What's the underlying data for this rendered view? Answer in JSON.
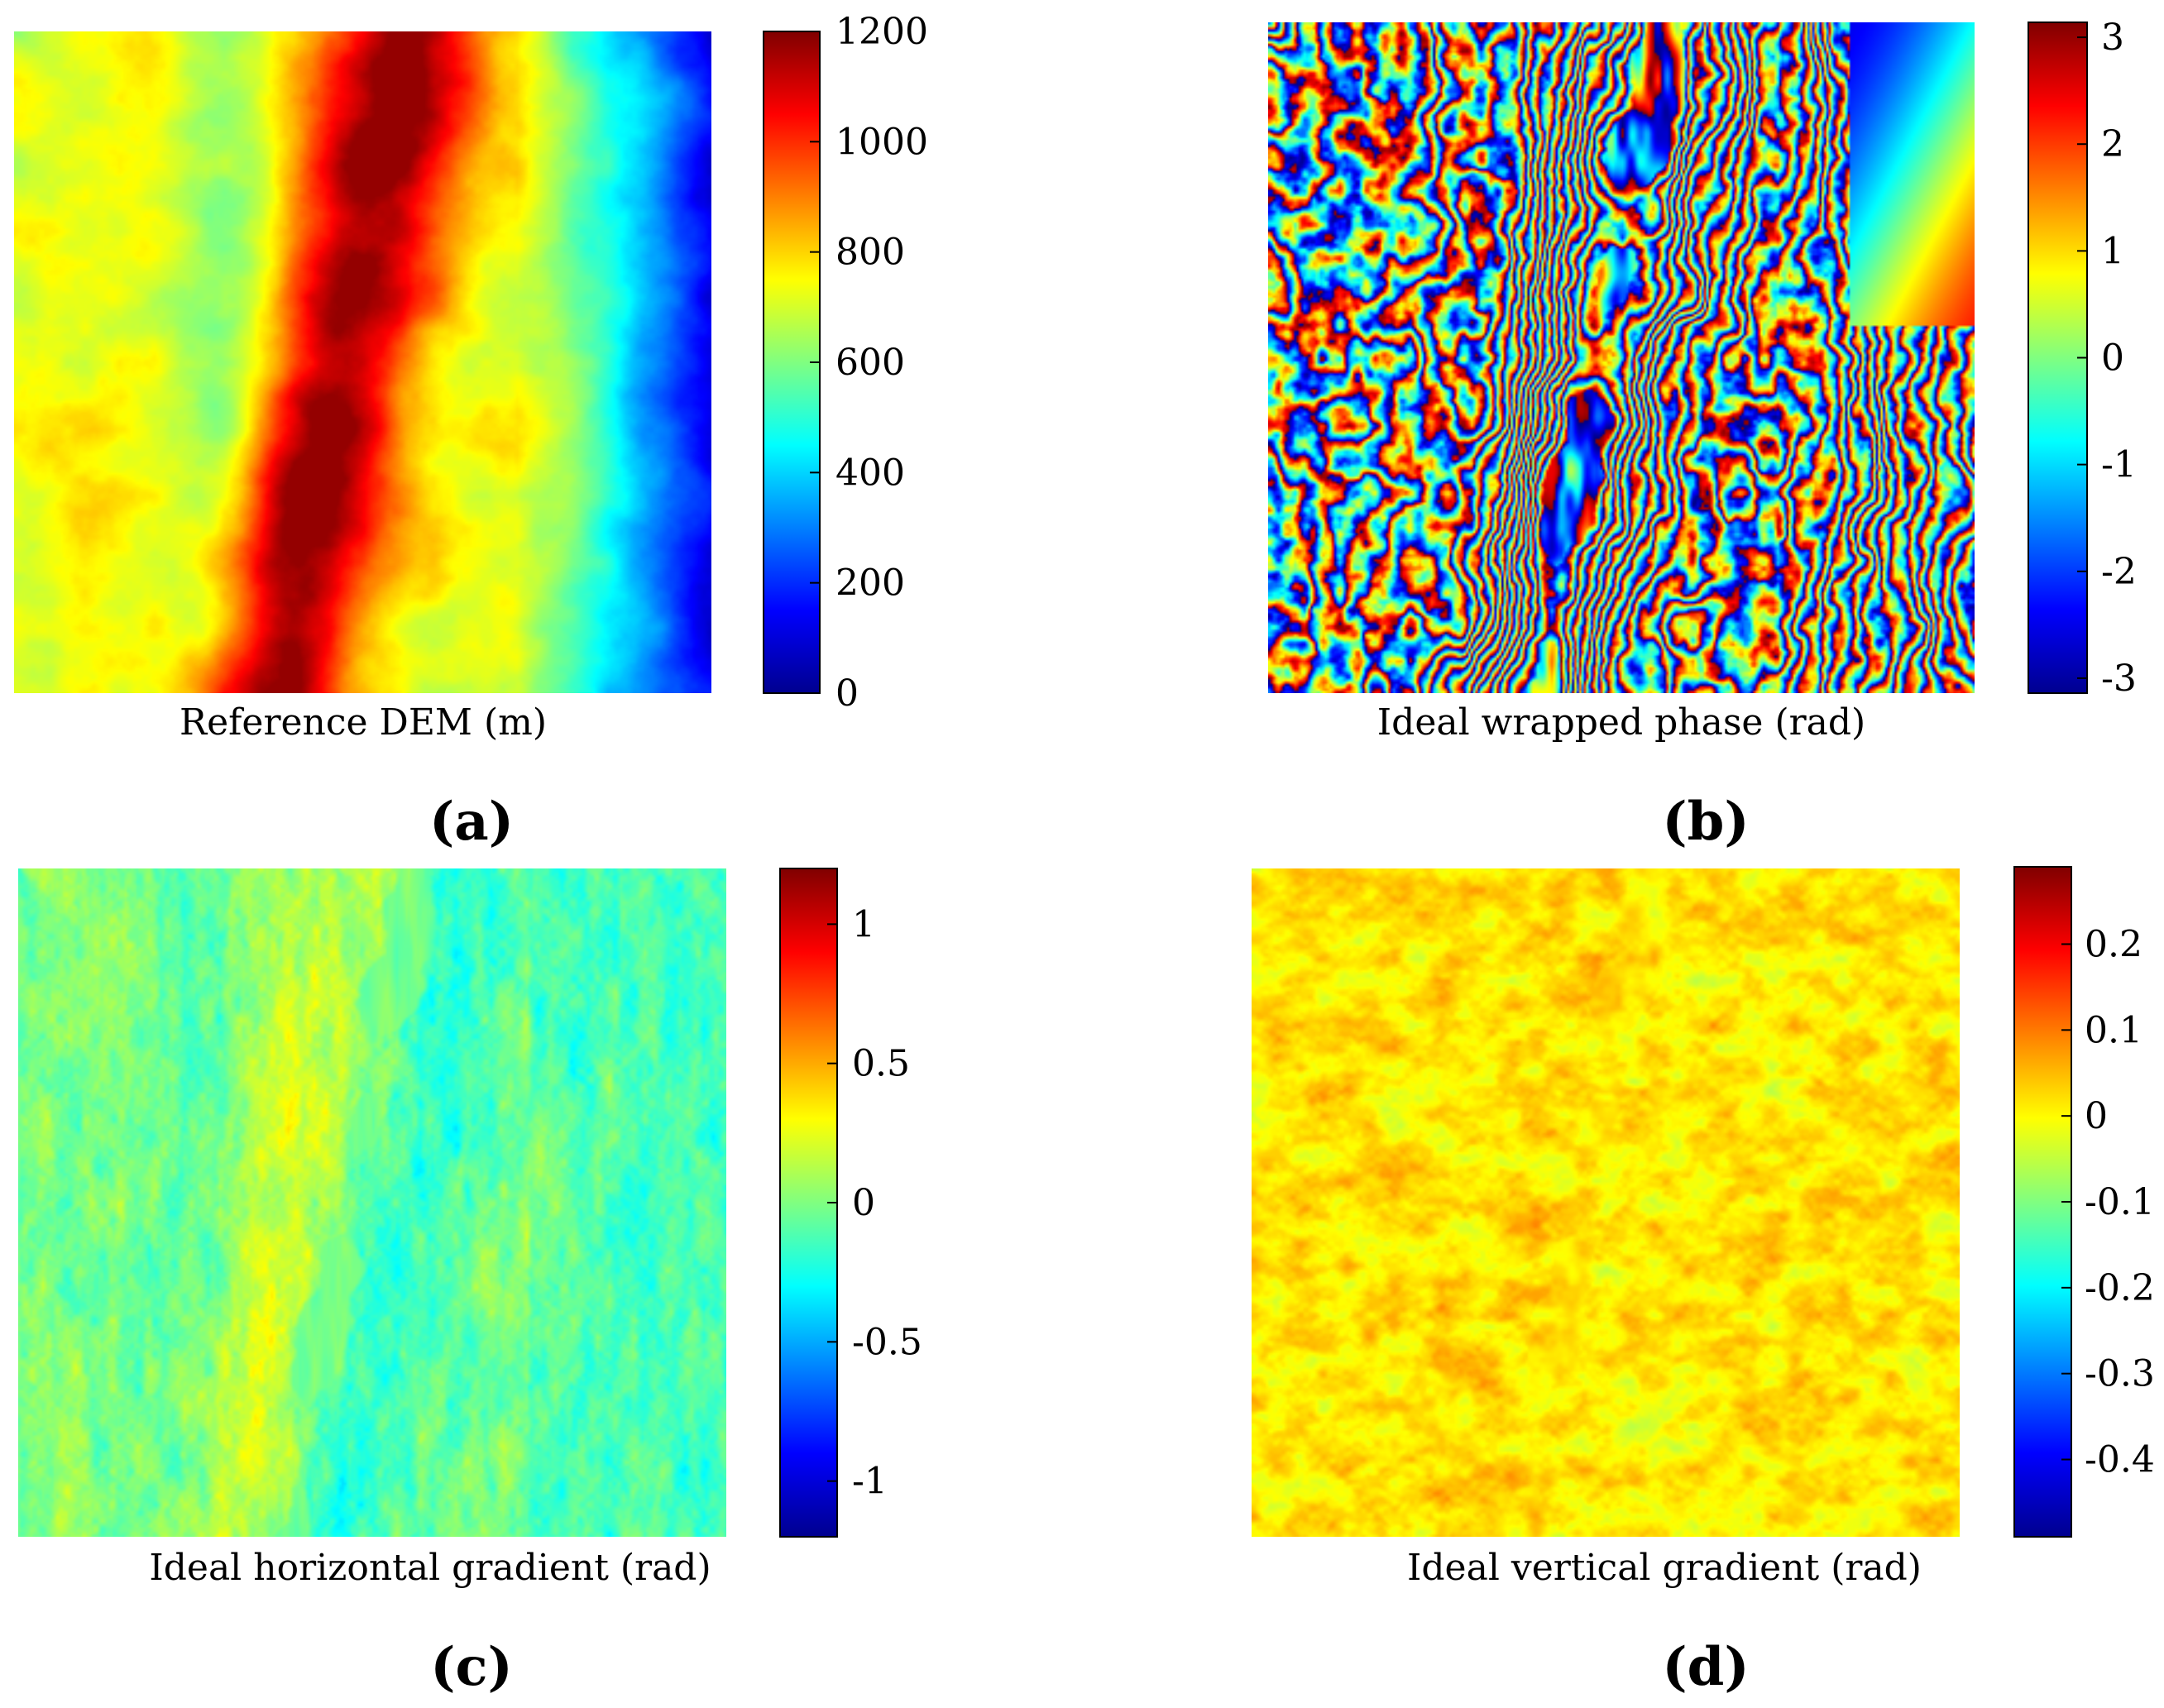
{
  "figure": {
    "panels": [
      {
        "id": "a",
        "label": "(a)",
        "caption": "Reference DEM (m)",
        "map": "dem"
      },
      {
        "id": "b",
        "label": "(b)",
        "caption": "Ideal wrapped phase (rad)",
        "map": "wrapped"
      },
      {
        "id": "c",
        "label": "(c)",
        "caption": "Ideal horizontal gradient (rad)",
        "map": "hgrad"
      },
      {
        "id": "d",
        "label": "(d)",
        "caption": "Ideal vertical gradient (rad)",
        "map": "vgrad"
      }
    ]
  },
  "chart_data": [
    {
      "type": "heatmap",
      "title": "",
      "xlabel": "Reference DEM (m)",
      "colormap": "jet",
      "colorbar": {
        "range": [
          0,
          1200
        ],
        "ticks": [
          0,
          200,
          400,
          600,
          800,
          1000,
          1200
        ],
        "tick_labels": [
          "0",
          "200",
          "400",
          "600",
          "800",
          "1000",
          "1200"
        ]
      }
    },
    {
      "type": "heatmap",
      "title": "",
      "xlabel": "Ideal wrapped phase (rad)",
      "colormap": "jet",
      "colorbar": {
        "range": [
          -3.14,
          3.14
        ],
        "ticks": [
          -3,
          -2,
          -1,
          0,
          1,
          2,
          3
        ],
        "tick_labels": [
          "-3",
          "-2",
          "-1",
          "0",
          "1",
          "2",
          "3"
        ]
      }
    },
    {
      "type": "heatmap",
      "title": "",
      "xlabel": "Ideal horizontal gradient (rad)",
      "colormap": "jet",
      "colorbar": {
        "range": [
          -1.2,
          1.2
        ],
        "ticks": [
          -1,
          -0.5,
          0,
          0.5,
          1
        ],
        "tick_labels": [
          "-1",
          "-0.5",
          "0",
          "0.5",
          "1"
        ]
      }
    },
    {
      "type": "heatmap",
      "title": "",
      "xlabel": "Ideal vertical gradient (rad)",
      "colormap": "jet",
      "colorbar": {
        "range": [
          -0.49,
          0.29
        ],
        "ticks": [
          -0.4,
          -0.3,
          -0.2,
          -0.1,
          0,
          0.1,
          0.2
        ],
        "tick_labels": [
          "-0.4",
          "-0.3",
          "-0.2",
          "-0.1",
          "0",
          "0.1",
          "0.2"
        ]
      }
    }
  ]
}
